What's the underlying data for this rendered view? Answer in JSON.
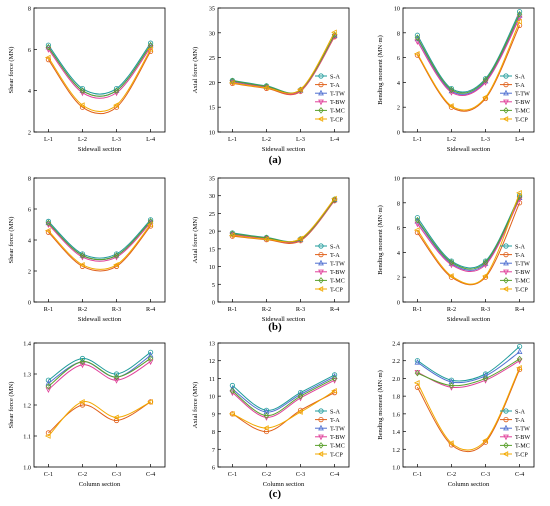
{
  "series_names": [
    "S-A",
    "T-A",
    "T-TW",
    "T-BW",
    "T-MC",
    "T-CP"
  ],
  "colors": {
    "S-A": "#1f9b9b",
    "T-A": "#e0601a",
    "T-TW": "#4f6fd0",
    "T-BW": "#e0409a",
    "T-MC": "#5aa02c",
    "T-CP": "#f2a900"
  },
  "markers": {
    "S-A": "circle",
    "T-A": "circle",
    "T-TW": "triangle",
    "T-BW": "triangle-down",
    "T-MC": "diamond",
    "T-CP": "triangle-left"
  },
  "row_labels": [
    "(a)",
    "(b)",
    "(c)"
  ],
  "chart_data": [
    {
      "type": "line",
      "row": 0,
      "col": 0,
      "categories": [
        "L-1",
        "L-2",
        "L-3",
        "L-4"
      ],
      "xlabel": "Sidewall section",
      "ylabel": "Shear force (MN)",
      "ylim": [
        2,
        8
      ],
      "yticks": [
        2,
        4,
        6,
        8
      ],
      "legend": "none",
      "series": [
        {
          "name": "S-A",
          "values": [
            6.2,
            4.1,
            4.1,
            6.3
          ]
        },
        {
          "name": "T-A",
          "values": [
            5.5,
            3.2,
            3.2,
            5.9
          ]
        },
        {
          "name": "T-TW",
          "values": [
            6.1,
            4.0,
            4.0,
            6.2
          ]
        },
        {
          "name": "T-BW",
          "values": [
            6.0,
            3.9,
            3.9,
            6.1
          ]
        },
        {
          "name": "T-MC",
          "values": [
            6.1,
            4.0,
            4.0,
            6.2
          ]
        },
        {
          "name": "T-CP",
          "values": [
            5.6,
            3.3,
            3.3,
            6.0
          ]
        }
      ]
    },
    {
      "type": "line",
      "row": 0,
      "col": 1,
      "categories": [
        "L-1",
        "L-2",
        "L-3",
        "L-4"
      ],
      "xlabel": "Sidewall section",
      "ylabel": "Axial force (MN)",
      "ylim": [
        10,
        35
      ],
      "yticks": [
        10,
        15,
        20,
        25,
        30,
        35
      ],
      "legend": "bottom-right",
      "series": [
        {
          "name": "S-A",
          "values": [
            20.4,
            19.3,
            18.5,
            29.5
          ]
        },
        {
          "name": "T-A",
          "values": [
            19.8,
            18.8,
            18.2,
            29.2
          ]
        },
        {
          "name": "T-TW",
          "values": [
            20.2,
            19.1,
            18.4,
            29.4
          ]
        },
        {
          "name": "T-BW",
          "values": [
            20.0,
            19.0,
            18.3,
            29.3
          ]
        },
        {
          "name": "T-MC",
          "values": [
            20.3,
            19.2,
            18.5,
            29.6
          ]
        },
        {
          "name": "T-CP",
          "values": [
            19.9,
            18.9,
            18.6,
            30.1
          ]
        }
      ]
    },
    {
      "type": "line",
      "row": 0,
      "col": 2,
      "categories": [
        "L-1",
        "L-2",
        "L-3",
        "L-4"
      ],
      "xlabel": "Sidewall section",
      "ylabel": "Bending moment (MN·m)",
      "ylim": [
        0,
        10
      ],
      "yticks": [
        0,
        2,
        4,
        6,
        8,
        10
      ],
      "legend": "bottom-right",
      "series": [
        {
          "name": "S-A",
          "values": [
            7.8,
            3.5,
            4.3,
            9.7
          ]
        },
        {
          "name": "T-A",
          "values": [
            6.2,
            2.0,
            2.7,
            8.6
          ]
        },
        {
          "name": "T-TW",
          "values": [
            7.5,
            3.3,
            4.1,
            9.4
          ]
        },
        {
          "name": "T-BW",
          "values": [
            7.3,
            3.2,
            4.0,
            9.2
          ]
        },
        {
          "name": "T-MC",
          "values": [
            7.6,
            3.4,
            4.2,
            9.5
          ]
        },
        {
          "name": "T-CP",
          "values": [
            6.3,
            2.1,
            2.8,
            8.9
          ]
        }
      ]
    },
    {
      "type": "line",
      "row": 1,
      "col": 0,
      "categories": [
        "R-1",
        "R-2",
        "R-3",
        "R-4"
      ],
      "xlabel": "Sidewall section",
      "ylabel": "Shear force (MN)",
      "ylim": [
        0,
        8
      ],
      "yticks": [
        0,
        2,
        4,
        6,
        8
      ],
      "legend": "none",
      "series": [
        {
          "name": "S-A",
          "values": [
            5.2,
            3.1,
            3.1,
            5.3
          ]
        },
        {
          "name": "T-A",
          "values": [
            4.5,
            2.3,
            2.3,
            4.9
          ]
        },
        {
          "name": "T-TW",
          "values": [
            5.1,
            3.0,
            3.0,
            5.2
          ]
        },
        {
          "name": "T-BW",
          "values": [
            5.0,
            2.9,
            2.9,
            5.1
          ]
        },
        {
          "name": "T-MC",
          "values": [
            5.1,
            3.0,
            3.0,
            5.2
          ]
        },
        {
          "name": "T-CP",
          "values": [
            4.6,
            2.4,
            2.4,
            5.0
          ]
        }
      ]
    },
    {
      "type": "line",
      "row": 1,
      "col": 1,
      "categories": [
        "R-1",
        "R-2",
        "R-3",
        "R-4"
      ],
      "xlabel": "Sidewall section",
      "ylabel": "Axial force (MN)",
      "ylim": [
        0,
        35
      ],
      "yticks": [
        0,
        5,
        10,
        15,
        20,
        25,
        30,
        35
      ],
      "legend": "bottom-right",
      "series": [
        {
          "name": "S-A",
          "values": [
            19.5,
            18.2,
            17.8,
            29.0
          ]
        },
        {
          "name": "T-A",
          "values": [
            18.6,
            17.6,
            17.3,
            28.6
          ]
        },
        {
          "name": "T-TW",
          "values": [
            19.2,
            18.0,
            17.6,
            28.8
          ]
        },
        {
          "name": "T-BW",
          "values": [
            19.0,
            17.9,
            17.5,
            28.7
          ]
        },
        {
          "name": "T-MC",
          "values": [
            19.3,
            18.1,
            17.7,
            28.9
          ]
        },
        {
          "name": "T-CP",
          "values": [
            18.8,
            17.7,
            17.9,
            29.2
          ]
        }
      ]
    },
    {
      "type": "line",
      "row": 1,
      "col": 2,
      "categories": [
        "R-1",
        "R-2",
        "R-3",
        "R-4"
      ],
      "xlabel": "Sidewall section",
      "ylabel": "Bending moment (MN·m)",
      "ylim": [
        0,
        10
      ],
      "yticks": [
        0,
        2,
        4,
        6,
        8,
        10
      ],
      "legend": "bottom-right",
      "series": [
        {
          "name": "S-A",
          "values": [
            6.8,
            3.3,
            3.3,
            8.6
          ]
        },
        {
          "name": "T-A",
          "values": [
            5.6,
            2.0,
            2.0,
            8.0
          ]
        },
        {
          "name": "T-TW",
          "values": [
            6.5,
            3.1,
            3.1,
            8.4
          ]
        },
        {
          "name": "T-BW",
          "values": [
            6.3,
            3.0,
            3.0,
            8.3
          ]
        },
        {
          "name": "T-MC",
          "values": [
            6.6,
            3.2,
            3.2,
            8.5
          ]
        },
        {
          "name": "T-CP",
          "values": [
            5.8,
            2.1,
            2.1,
            8.8
          ]
        }
      ]
    },
    {
      "type": "line",
      "row": 2,
      "col": 0,
      "categories": [
        "C-1",
        "C-2",
        "C-3",
        "C-4"
      ],
      "xlabel": "Column section",
      "ylabel": "Shear force (MN)",
      "ylim": [
        1.0,
        1.4
      ],
      "yticks": [
        1.0,
        1.1,
        1.2,
        1.3,
        1.4
      ],
      "legend": "none",
      "series": [
        {
          "name": "S-A",
          "values": [
            1.28,
            1.35,
            1.3,
            1.37
          ]
        },
        {
          "name": "T-A",
          "values": [
            1.11,
            1.2,
            1.15,
            1.21
          ]
        },
        {
          "name": "T-TW",
          "values": [
            1.27,
            1.34,
            1.29,
            1.36
          ]
        },
        {
          "name": "T-BW",
          "values": [
            1.25,
            1.33,
            1.28,
            1.34
          ]
        },
        {
          "name": "T-MC",
          "values": [
            1.26,
            1.34,
            1.29,
            1.35
          ]
        },
        {
          "name": "T-CP",
          "values": [
            1.1,
            1.21,
            1.16,
            1.21
          ]
        }
      ]
    },
    {
      "type": "line",
      "row": 2,
      "col": 1,
      "categories": [
        "C-1",
        "C-2",
        "C-3",
        "C-4"
      ],
      "xlabel": "Column section",
      "ylabel": "Axial force (MN)",
      "ylim": [
        6,
        13
      ],
      "yticks": [
        6,
        7,
        8,
        9,
        10,
        11,
        12,
        13
      ],
      "legend": "bottom-right",
      "series": [
        {
          "name": "S-A",
          "values": [
            10.6,
            9.2,
            10.2,
            11.2
          ]
        },
        {
          "name": "T-A",
          "values": [
            9.0,
            8.0,
            9.2,
            10.2
          ]
        },
        {
          "name": "T-TW",
          "values": [
            10.4,
            9.1,
            10.1,
            11.1
          ]
        },
        {
          "name": "T-BW",
          "values": [
            10.2,
            8.8,
            9.9,
            10.9
          ]
        },
        {
          "name": "T-MC",
          "values": [
            10.3,
            8.9,
            10.0,
            11.0
          ]
        },
        {
          "name": "T-CP",
          "values": [
            9.0,
            8.2,
            9.1,
            10.3
          ]
        }
      ]
    },
    {
      "type": "line",
      "row": 2,
      "col": 2,
      "categories": [
        "C-1",
        "C-2",
        "C-3",
        "C-4"
      ],
      "xlabel": "Column section",
      "ylabel": "Bending moment (MN·m)",
      "ylim": [
        1.0,
        2.4
      ],
      "yticks": [
        1.0,
        1.2,
        1.4,
        1.6,
        1.8,
        2.0,
        2.2,
        2.4
      ],
      "legend": "bottom-right",
      "series": [
        {
          "name": "S-A",
          "values": [
            2.2,
            1.98,
            2.05,
            2.36
          ]
        },
        {
          "name": "T-A",
          "values": [
            1.9,
            1.25,
            1.28,
            2.1
          ]
        },
        {
          "name": "T-TW",
          "values": [
            2.18,
            1.96,
            2.03,
            2.3
          ]
        },
        {
          "name": "T-BW",
          "values": [
            2.07,
            1.9,
            1.98,
            2.2
          ]
        },
        {
          "name": "T-MC",
          "values": [
            2.06,
            1.92,
            2.0,
            2.22
          ]
        },
        {
          "name": "T-CP",
          "values": [
            1.95,
            1.27,
            1.3,
            2.12
          ]
        }
      ]
    }
  ]
}
